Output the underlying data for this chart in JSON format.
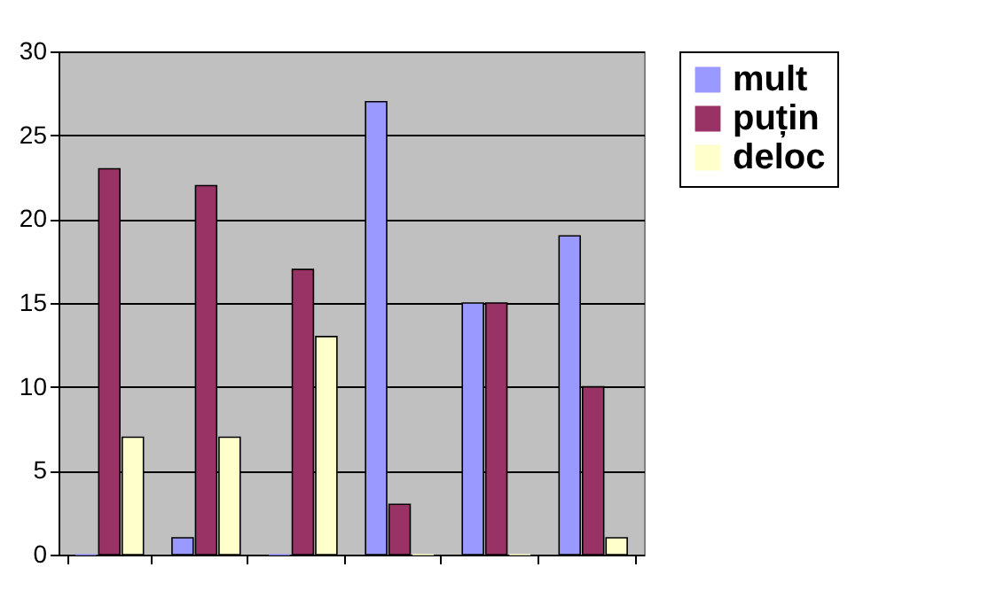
{
  "chart_data": {
    "type": "bar",
    "categories": [
      null,
      null,
      null,
      null,
      null,
      null
    ],
    "series": [
      {
        "name": "mult",
        "color": "#9999ff",
        "values": [
          0,
          1,
          0,
          27,
          15,
          19
        ]
      },
      {
        "name": "puțin",
        "color": "#993366",
        "values": [
          23,
          22,
          17,
          3,
          15,
          10
        ]
      },
      {
        "name": "deloc",
        "color": "#ffffcc",
        "values": [
          7,
          7,
          13,
          0,
          0,
          1
        ]
      }
    ],
    "ylim": [
      0,
      30
    ],
    "yticks": [
      0,
      5,
      10,
      15,
      20,
      25,
      30
    ],
    "grid": "y",
    "legend": "right"
  }
}
